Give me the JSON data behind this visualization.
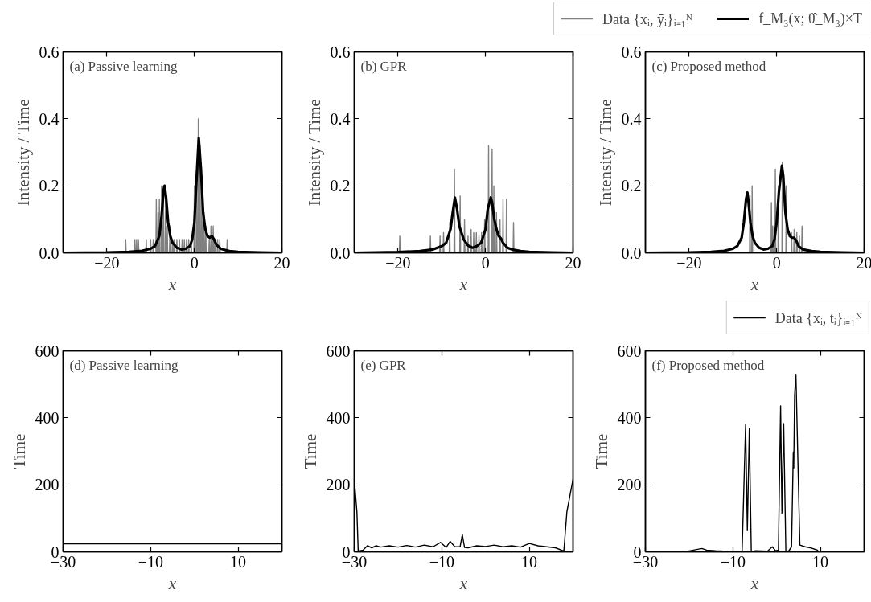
{
  "chart_data": [
    {
      "type": "line",
      "title": "(a) Passive learning",
      "xlabel": "x",
      "ylabel": "Intensity / Time",
      "xlim": [
        -30,
        20
      ],
      "ylim": [
        0,
        0.6
      ],
      "xticks": [
        -20,
        0,
        20
      ],
      "yticks": [
        {
          "value": 0,
          "label": "0.0"
        },
        {
          "value": 0.2,
          "label": "0.2"
        },
        {
          "value": 0.4,
          "label": "0.4"
        },
        {
          "value": 0.6,
          "label": "0.6"
        }
      ],
      "series": [
        {
          "color": "#808080",
          "x": [
            -30,
            -15.8,
            -15.7,
            -15.6,
            -13.7,
            -13.6,
            -13.5,
            -13.3,
            -13.2,
            -13.1,
            -12.9,
            -12.8,
            -12.7,
            -11.1,
            -11,
            -10.9,
            -10.1,
            -10,
            -9.9,
            -9.5,
            -9.4,
            -9.3,
            -8.8,
            -8.7,
            -8.6,
            -8.4,
            -8.3,
            -8.2,
            -8.1,
            -8,
            -7.9,
            -7.6,
            -7.5,
            -7.4,
            -7.2,
            -7.1,
            -7,
            -6.7,
            -6.6,
            -6.5,
            -6.3,
            -6.2,
            -6.1,
            -5.7,
            -5.6,
            -5.5,
            -5.1,
            -5,
            -4.9,
            -4.7,
            -4.6,
            -4.5,
            -4.1,
            -4,
            -3.9,
            -3.5,
            -3.4,
            -3.3,
            -2.9,
            -2.8,
            -2.7,
            -2.4,
            -2.3,
            -2.2,
            -1.9,
            -1.8,
            -1.7,
            -1.4,
            -1.3,
            -1.2,
            -0.8,
            -0.7,
            -0.6,
            -0.1,
            0,
            0.1,
            0.4,
            0.5,
            0.6,
            0.8,
            0.9,
            1,
            1.2,
            1.3,
            1.4,
            1.6,
            1.7,
            1.8,
            2.1,
            2.2,
            2.3,
            2.5,
            2.6,
            2.7,
            3.3,
            3.4,
            3.5,
            3.7,
            3.8,
            3.9,
            4.2,
            4.3,
            4.4,
            4.6,
            4.7,
            4.8,
            5.2,
            5.3,
            5.4,
            5.7,
            5.8,
            5.9,
            7.4,
            7.5,
            7.6,
            20
          ],
          "values": [
            0,
            0,
            0.04,
            0,
            0,
            0.04,
            0,
            0,
            0.04,
            0,
            0,
            0.04,
            0,
            0,
            0.04,
            0,
            0,
            0.04,
            0,
            0,
            0.04,
            0,
            0,
            0.16,
            0,
            0,
            0.12,
            0,
            0,
            0.16,
            0,
            0,
            0.2,
            0,
            0,
            0.2,
            0,
            0,
            0.2,
            0,
            0,
            0.08,
            0,
            0,
            0.08,
            0,
            0,
            0.04,
            0,
            0,
            0.04,
            0,
            0,
            0.04,
            0,
            0,
            0.04,
            0,
            0,
            0.04,
            0,
            0,
            0.04,
            0,
            0,
            0.04,
            0,
            0,
            0.04,
            0,
            0,
            0.04,
            0,
            0,
            0.2,
            0,
            0,
            0.24,
            0,
            0,
            0.4,
            0,
            0,
            0.32,
            0,
            0,
            0.16,
            0,
            0,
            0.12,
            0,
            0,
            0.08,
            0,
            0,
            0.04,
            0,
            0,
            0.08,
            0,
            0,
            0.08,
            0,
            0,
            0.04,
            0,
            0,
            0.04,
            0,
            0,
            0.04,
            0,
            0,
            0.04,
            0,
            0
          ]
        },
        {
          "color": "#000000",
          "x": [
            -30,
            -20,
            -15,
            -12,
            -10,
            -9,
            -8,
            -7.5,
            -7,
            -6.8,
            -6.5,
            -6,
            -5.5,
            -5,
            -4,
            -3,
            -2,
            -1,
            -0.5,
            0,
            0.5,
            1,
            1.5,
            2,
            2.5,
            3,
            3.5,
            4,
            4.5,
            5,
            6,
            8,
            10,
            15,
            20
          ],
          "values": [
            0,
            0.001,
            0.003,
            0.006,
            0.012,
            0.02,
            0.05,
            0.11,
            0.19,
            0.2,
            0.17,
            0.09,
            0.05,
            0.03,
            0.015,
            0.01,
            0.012,
            0.02,
            0.04,
            0.09,
            0.22,
            0.343,
            0.25,
            0.12,
            0.07,
            0.05,
            0.045,
            0.05,
            0.04,
            0.025,
            0.012,
            0.005,
            0.003,
            0.001,
            0
          ]
        }
      ]
    },
    {
      "type": "line",
      "title": "(b) GPR",
      "xlabel": "x",
      "ylabel": "Intensity / Time",
      "xlim": [
        -30,
        20
      ],
      "ylim": [
        0,
        0.6
      ],
      "xticks": [
        -20,
        0,
        20
      ],
      "yticks": [
        {
          "value": 0,
          "label": "0.0"
        },
        {
          "value": 0.2,
          "label": "0.2"
        },
        {
          "value": 0.4,
          "label": "0.4"
        },
        {
          "value": 0.6,
          "label": "0.6"
        }
      ],
      "series": [
        {
          "color": "#808080",
          "x": [
            -30,
            -19.7,
            -19.6,
            -19.5,
            -12.7,
            -12.6,
            -12.5,
            -10.5,
            -10.4,
            -10.3,
            -9.7,
            -9.6,
            -9.5,
            -8.3,
            -8.2,
            -8.1,
            -7.2,
            -7.1,
            -7,
            -5.9,
            -5.8,
            -5.7,
            -4.9,
            -4.8,
            -4.7,
            -4.1,
            -4,
            -3.9,
            -3.4,
            -3.3,
            -3.2,
            -2.8,
            -2.7,
            -2.6,
            -2.2,
            -2.1,
            -2,
            -1.6,
            -1.5,
            -1.4,
            -1,
            -0.9,
            -0.8,
            -0.3,
            -0.2,
            -0.1,
            0.6,
            0.7,
            0.8,
            1.4,
            1.5,
            1.6,
            1.8,
            1.9,
            2,
            2.4,
            2.5,
            2.6,
            3.2,
            3.3,
            3.4,
            3.9,
            4,
            4.1,
            4.7,
            4.8,
            4.9,
            6.3,
            6.4,
            6.5,
            20
          ],
          "values": [
            0,
            0,
            0.05,
            0,
            0,
            0.05,
            0,
            0,
            0.05,
            0,
            0,
            0.06,
            0,
            0,
            0.09,
            0,
            0,
            0.25,
            0,
            0,
            0.17,
            0,
            0,
            0.1,
            0,
            0,
            0.05,
            0,
            0,
            0.07,
            0,
            0,
            0.06,
            0,
            0,
            0.06,
            0,
            0,
            0.05,
            0,
            0,
            0.06,
            0,
            0,
            0.1,
            0,
            0,
            0.32,
            0,
            0,
            0.31,
            0,
            0,
            0.2,
            0,
            0,
            0.12,
            0,
            0,
            0.1,
            0,
            0,
            0.16,
            0,
            0,
            0.16,
            0,
            0,
            0.09,
            0,
            0
          ]
        },
        {
          "color": "#000000",
          "x": [
            -30,
            -20,
            -15,
            -12,
            -10,
            -9,
            -8,
            -7.5,
            -7,
            -6.5,
            -6,
            -5,
            -4,
            -3,
            -2,
            -1,
            0,
            0.5,
            1.2,
            1.5,
            2,
            2.5,
            3,
            3.5,
            4,
            5,
            6,
            8,
            10,
            15,
            20
          ],
          "values": [
            0,
            0.002,
            0.005,
            0.01,
            0.02,
            0.03,
            0.07,
            0.12,
            0.165,
            0.13,
            0.08,
            0.04,
            0.022,
            0.015,
            0.02,
            0.03,
            0.07,
            0.13,
            0.165,
            0.15,
            0.1,
            0.07,
            0.05,
            0.043,
            0.03,
            0.015,
            0.01,
            0.005,
            0.003,
            0.001,
            0
          ]
        }
      ]
    },
    {
      "type": "line",
      "title": "(c) Proposed method",
      "xlabel": "x",
      "ylabel": "Intensity / Time",
      "xlim": [
        -30,
        20
      ],
      "ylim": [
        0,
        0.6
      ],
      "xticks": [
        -20,
        0,
        20
      ],
      "yticks": [
        {
          "value": 0,
          "label": "0.0"
        },
        {
          "value": 0.2,
          "label": "0.2"
        },
        {
          "value": 0.4,
          "label": "0.4"
        },
        {
          "value": 0.6,
          "label": "0.6"
        }
      ],
      "legend": "top",
      "series": [
        {
          "name": "Data {xᵢ, ȳᵢ}ᵢ₌₁ᴺ",
          "color": "#808080",
          "x": [
            -30,
            -6.2,
            -6.1,
            -6,
            -5.7,
            -5.6,
            -5.5,
            -1.3,
            -1.2,
            -1.1,
            -1,
            -0.9,
            -0.8,
            -0.4,
            -0.3,
            -0.2,
            0.3,
            0.4,
            0.5,
            1.2,
            1.3,
            1.4,
            2.1,
            2.2,
            2.3,
            3.3,
            3.4,
            3.5,
            3.9,
            4,
            4.1,
            4.5,
            4.6,
            4.7,
            5.1,
            5.2,
            5.3,
            5.7,
            5.8,
            5.9,
            20
          ],
          "values": [
            0,
            0,
            0.17,
            0,
            0,
            0.2,
            0,
            0,
            0.15,
            0,
            0,
            0.08,
            0,
            0,
            0.25,
            0,
            0,
            0.2,
            0,
            0,
            0.27,
            0,
            0,
            0.2,
            0,
            0,
            0.06,
            0,
            0,
            0.07,
            0,
            0,
            0.06,
            0,
            0,
            0.05,
            0,
            0,
            0.08,
            0,
            0
          ]
        },
        {
          "name": "f_M₃(x; θ̂_M₃)×T",
          "color": "#000000",
          "x": [
            -30,
            -20,
            -15,
            -12,
            -10,
            -9,
            -8,
            -7.5,
            -7,
            -6.7,
            -6.5,
            -6,
            -5.5,
            -5,
            -4,
            -3,
            -2,
            -1,
            -0.5,
            0,
            0.5,
            1.2,
            1.5,
            2,
            2.5,
            3,
            3.5,
            4,
            4.5,
            5,
            6,
            8,
            10,
            15,
            20
          ],
          "values": [
            0,
            0.001,
            0.003,
            0.006,
            0.012,
            0.02,
            0.045,
            0.09,
            0.16,
            0.18,
            0.16,
            0.09,
            0.05,
            0.03,
            0.015,
            0.01,
            0.012,
            0.02,
            0.04,
            0.09,
            0.18,
            0.26,
            0.23,
            0.12,
            0.07,
            0.05,
            0.045,
            0.045,
            0.035,
            0.02,
            0.01,
            0.005,
            0.003,
            0.001,
            0
          ]
        }
      ]
    },
    {
      "type": "line",
      "title": "(d) Passive learning",
      "xlabel": "x",
      "ylabel": "Time",
      "xlim": [
        -30,
        20
      ],
      "ylim": [
        0,
        600
      ],
      "xticks": [
        -30,
        -10,
        10
      ],
      "yticks": [
        0,
        200,
        400,
        600
      ],
      "series": [
        {
          "color": "#000000",
          "x": [
            -30,
            20
          ],
          "values": [
            24,
            24
          ]
        }
      ]
    },
    {
      "type": "line",
      "title": "(e) GPR",
      "xlabel": "x",
      "ylabel": "Time",
      "xlim": [
        -30,
        20
      ],
      "ylim": [
        0,
        600
      ],
      "xticks": [
        -30,
        -10,
        10
      ],
      "yticks": [
        0,
        200,
        400,
        600
      ],
      "series": [
        {
          "color": "#000000",
          "x": [
            -30,
            -29.4,
            -29.1,
            -28,
            -27,
            -26,
            -25,
            -24,
            -22,
            -20,
            -18,
            -16,
            -14,
            -12,
            -10.3,
            -9,
            -8.1,
            -7,
            -5.8,
            -5.3,
            -4.8,
            -4,
            -2,
            0,
            2,
            4,
            6,
            8,
            10,
            12,
            14,
            16,
            17.9,
            18.6,
            20
          ],
          "values": [
            217,
            120,
            2,
            5,
            18,
            12,
            18,
            14,
            18,
            14,
            19,
            14,
            20,
            15,
            28,
            13,
            31,
            15,
            16,
            51,
            13,
            12,
            18,
            16,
            20,
            15,
            18,
            14,
            25,
            18,
            15,
            12,
            2,
            120,
            217
          ]
        }
      ]
    },
    {
      "type": "line",
      "title": "(f) Proposed method",
      "xlabel": "x",
      "ylabel": "Time",
      "xlim": [
        -30,
        20
      ],
      "ylim": [
        0,
        600
      ],
      "xticks": [
        -30,
        -10,
        10
      ],
      "yticks": [
        0,
        200,
        400,
        600
      ],
      "legend": "top right",
      "series": [
        {
          "name": "Data {xᵢ, tᵢ}ᵢ₌₁ᴺ",
          "color": "#000000",
          "x": [
            -21,
            -19,
            -17.1,
            -16,
            -14,
            -12,
            -11,
            -7.9,
            -7.1,
            -6.7,
            -6.25,
            -5.8,
            -4.85,
            -2.1,
            -1,
            -0.25,
            0.4,
            0.9,
            1.2,
            1.6,
            2.1,
            2.8,
            3.4,
            3.8,
            3.9,
            4.1,
            4.4,
            4.8,
            5.3,
            6.5,
            7.7,
            9.3,
            9.6
          ],
          "values": [
            0,
            5,
            10,
            5,
            3,
            2,
            0,
            0,
            380,
            63,
            368,
            0,
            3,
            2,
            15,
            3,
            5,
            436,
            115,
            383,
            0,
            3,
            15,
            298,
            250,
            468,
            530,
            300,
            20,
            15,
            12,
            5,
            0
          ]
        }
      ]
    }
  ]
}
